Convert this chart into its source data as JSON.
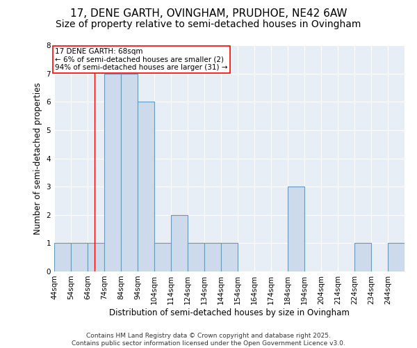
{
  "title_line1": "17, DENE GARTH, OVINGHAM, PRUDHOE, NE42 6AW",
  "title_line2": "Size of property relative to semi-detached houses in Ovingham",
  "xlabel": "Distribution of semi-detached houses by size in Ovingham",
  "ylabel": "Number of semi-detached properties",
  "footnote": "Contains HM Land Registry data © Crown copyright and database right 2025.\nContains public sector information licensed under the Open Government Licence v3.0.",
  "bin_labels": [
    "44sqm",
    "54sqm",
    "64sqm",
    "74sqm",
    "84sqm",
    "94sqm",
    "104sqm",
    "114sqm",
    "124sqm",
    "134sqm",
    "144sqm",
    "154sqm",
    "164sqm",
    "174sqm",
    "184sqm",
    "194sqm",
    "204sqm",
    "214sqm",
    "224sqm",
    "234sqm",
    "244sqm"
  ],
  "bin_starts": [
    44,
    54,
    64,
    74,
    84,
    94,
    104,
    114,
    124,
    134,
    144,
    154,
    164,
    174,
    184,
    194,
    204,
    214,
    224,
    234,
    244
  ],
  "bin_width": 10,
  "values": [
    1,
    1,
    1,
    7,
    7,
    6,
    1,
    2,
    1,
    1,
    1,
    0,
    0,
    0,
    3,
    0,
    0,
    0,
    1,
    0,
    1
  ],
  "bar_color": "#ccdaeb",
  "bar_edge_color": "#6699bb",
  "red_line_x": 68,
  "annotation_text": "17 DENE GARTH: 68sqm\n← 6% of semi-detached houses are smaller (2)\n94% of semi-detached houses are larger (31) →",
  "annotation_box_color": "white",
  "annotation_box_edge_color": "red",
  "ylim": [
    0,
    8
  ],
  "yticks": [
    0,
    1,
    2,
    3,
    4,
    5,
    6,
    7,
    8
  ],
  "xlim": [
    44,
    254
  ],
  "background_color": "#e8eef5",
  "grid_color": "white",
  "title_fontsize": 11,
  "subtitle_fontsize": 10,
  "axis_label_fontsize": 8.5,
  "tick_fontsize": 7.5,
  "annotation_fontsize": 7.5,
  "footnote_fontsize": 6.5
}
